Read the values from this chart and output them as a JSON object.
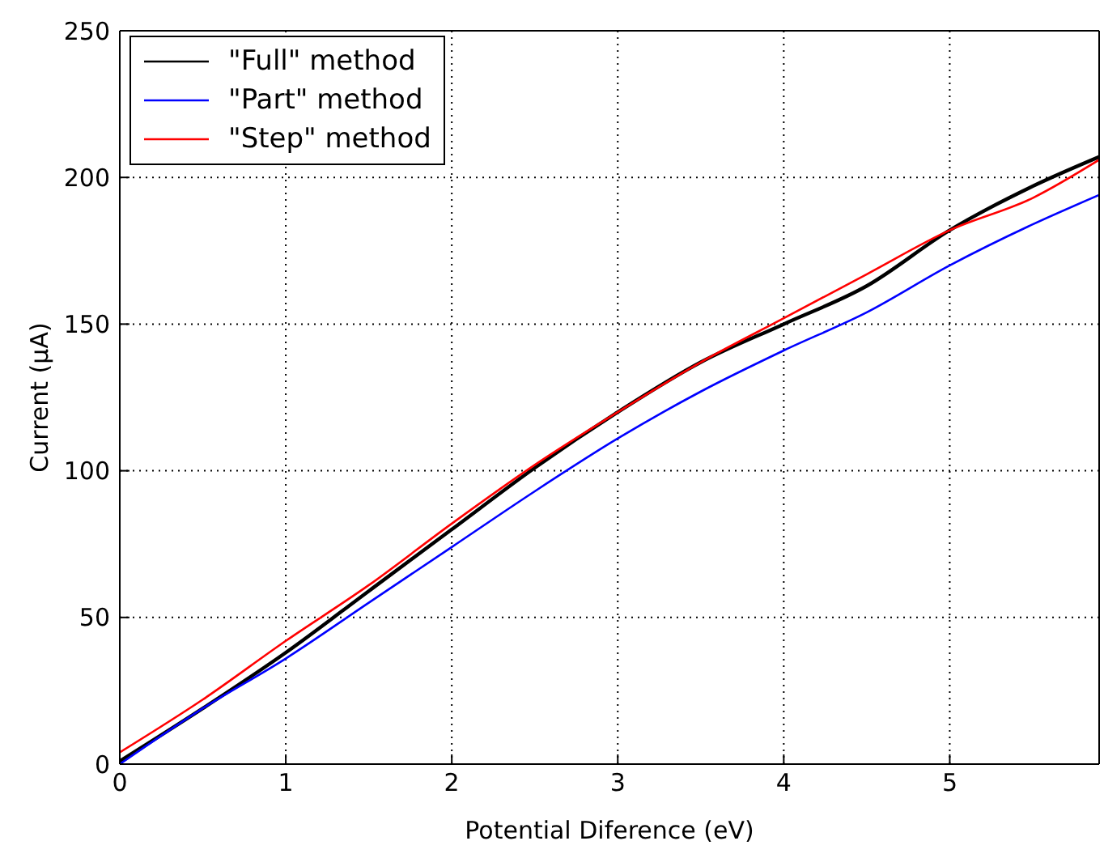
{
  "chart_data": {
    "type": "line",
    "xlabel": "Potential Diference (eV)",
    "ylabel": "Current (μA)",
    "x": [
      0,
      0.5,
      1,
      1.5,
      2,
      2.5,
      3,
      3.5,
      4,
      4.5,
      5,
      5.5,
      5.9
    ],
    "series": [
      {
        "name": "\"Full\" method",
        "color": "#000000",
        "values": [
          1,
          19,
          38,
          59,
          80,
          101,
          120,
          137,
          150,
          163,
          182,
          197,
          207
        ]
      },
      {
        "name": "\"Part\" method",
        "color": "#0000ff",
        "values": [
          0,
          19,
          36,
          55,
          74,
          93,
          111,
          127,
          141,
          154,
          170,
          184,
          194
        ]
      },
      {
        "name": "\"Step\" method",
        "color": "#ff0000",
        "values": [
          4,
          22,
          42,
          61,
          82,
          102,
          120,
          137,
          152,
          167,
          182,
          193,
          206
        ]
      }
    ],
    "xlim": [
      0,
      5.9
    ],
    "xticks": [
      0,
      1,
      2,
      3,
      4,
      5
    ],
    "ylim": [
      0,
      250
    ],
    "yticks": [
      0,
      50,
      100,
      150,
      200,
      250
    ],
    "grid": true,
    "legend": "top left",
    "marker": "none",
    "line_style": "solid"
  }
}
